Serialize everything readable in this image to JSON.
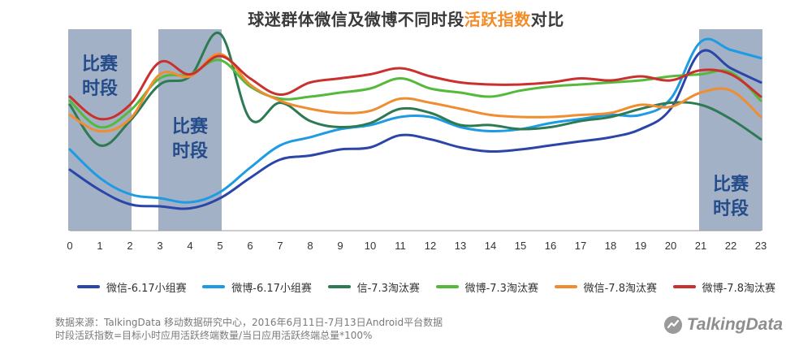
{
  "title": {
    "prefix": "球迷群体微信及微博不同时段",
    "highlight": "活跃指数",
    "suffix": "对比"
  },
  "colors": {
    "title_highlight": "#f28c28",
    "band": "#a3b1c6",
    "band_label": "#244b8a"
  },
  "footnotes": {
    "source": "数据来源：TalkingData 移动数据研究中心，2016年6月11日-7月13日Android平台数据",
    "definition": "时段活跃指数=目标小时应用活跃终端数量/当日应用活跃终端总量*100%"
  },
  "logo": {
    "text": "TalkingData",
    "icon": "talkingdata-logo-icon"
  },
  "chart_data": {
    "type": "line",
    "title": "球迷群体微信及微博不同时段活跃指数对比",
    "xlabel": "",
    "ylabel": "",
    "x": [
      0,
      1,
      2,
      3,
      4,
      5,
      6,
      7,
      8,
      9,
      10,
      11,
      12,
      13,
      14,
      15,
      16,
      17,
      18,
      19,
      20,
      21,
      22,
      23
    ],
    "xlim": [
      0,
      23
    ],
    "ylim": [
      0,
      100
    ],
    "grid": false,
    "legend_position": "bottom",
    "shaded_regions": [
      {
        "from": 0,
        "to": 2,
        "label_lines": [
          "比赛",
          "时段"
        ]
      },
      {
        "from": 3,
        "to": 5,
        "label_lines": [
          "比赛",
          "时段"
        ]
      },
      {
        "from": 21,
        "to": 23,
        "label_lines": [
          "比赛",
          "时段"
        ]
      }
    ],
    "series": [
      {
        "name": "微信-6.17小组赛",
        "color": "#2b46a8",
        "values": [
          30,
          20,
          13,
          12,
          11,
          16,
          26,
          35,
          37,
          40,
          41,
          47,
          45,
          41,
          39,
          40,
          42,
          44,
          46,
          50,
          60,
          88,
          80,
          73
        ]
      },
      {
        "name": "微博-6.17小组赛",
        "color": "#1d9be3",
        "values": [
          40,
          26,
          18,
          16,
          14,
          19,
          31,
          42,
          46,
          50,
          52,
          56,
          56,
          51,
          49,
          50,
          53,
          55,
          57,
          57,
          65,
          93,
          89,
          85
        ]
      },
      {
        "name": "信-7.3淘汰赛",
        "color": "#2e7a52",
        "values": [
          62,
          42,
          54,
          72,
          76,
          97,
          55,
          63,
          54,
          51,
          53,
          60,
          58,
          52,
          52,
          50,
          51,
          54,
          56,
          60,
          63,
          62,
          55,
          45
        ]
      },
      {
        "name": "微博-7.3淘汰赛",
        "color": "#55b93c",
        "values": [
          64,
          51,
          59,
          75,
          77,
          84,
          71,
          65,
          66,
          68,
          70,
          75,
          70,
          68,
          66,
          69,
          71,
          72,
          73,
          74,
          76,
          77,
          78,
          64
        ]
      },
      {
        "name": "微信-7.8淘汰赛",
        "color": "#f08d30",
        "values": [
          57,
          49,
          55,
          77,
          76,
          87,
          72,
          64,
          60,
          58,
          59,
          65,
          63,
          60,
          57,
          56,
          56,
          57,
          58,
          62,
          61,
          68,
          69,
          56
        ]
      },
      {
        "name": "微博-7.8淘汰赛",
        "color": "#c9302e",
        "values": [
          66,
          55,
          62,
          83,
          77,
          86,
          75,
          67,
          73,
          75,
          77,
          80,
          76,
          73,
          72,
          72,
          73,
          75,
          74,
          76,
          74,
          79,
          77,
          66
        ]
      }
    ]
  }
}
